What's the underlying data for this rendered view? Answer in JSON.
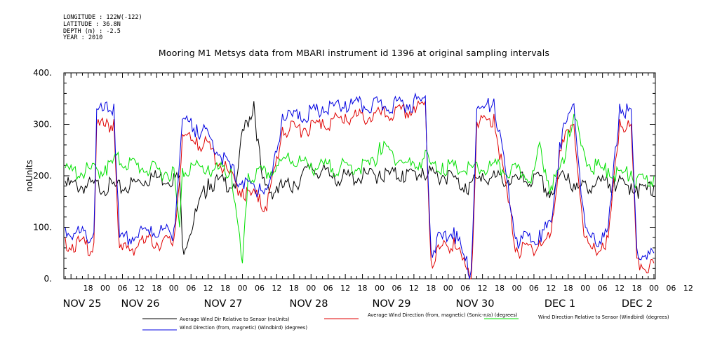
{
  "header": {
    "meta_lines": [
      "LONGITUDE : 122W(-122)",
      "LATITUDE : 36.8N",
      "DEPTH (m) : -2.5",
      "YEAR : 2010"
    ]
  },
  "chart_data": {
    "type": "line",
    "title": "Mooring M1 Metsys data from MBARI instrument id 1396 at original sampling intervals",
    "ylabel": "noUnits",
    "xlabel": "",
    "ylim": [
      0,
      400
    ],
    "yticks": [
      0,
      100,
      200,
      300,
      400
    ],
    "hour_labels": [
      "18",
      "00",
      "06",
      "12",
      "18",
      "00",
      "06",
      "12",
      "18",
      "00",
      "06",
      "12",
      "18",
      "00",
      "06",
      "12",
      "18",
      "00",
      "06",
      "12",
      "18",
      "00",
      "06",
      "12",
      "18",
      "00",
      "06",
      "12",
      "18",
      "00",
      "06",
      "12",
      "18",
      "00",
      "06",
      "12"
    ],
    "day_labels": [
      "NOV 25",
      "NOV 26",
      "NOV 27",
      "NOV 28",
      "NOV 29",
      "NOV 30",
      "DEC  1",
      "DEC  2"
    ],
    "x_hour_range": [
      -14.5,
      192.5
    ],
    "grid": false,
    "legend_position": "bottom",
    "series": [
      {
        "name": "Average Wind Dir Relative to Sensor (noUnits)",
        "color": "#000000",
        "x": [
          -14,
          3,
          4,
          16,
          24,
          26,
          27,
          36,
          46,
          48,
          52,
          55,
          57,
          60,
          61,
          66,
          72,
          80,
          84,
          96,
          100,
          104,
          108,
          111,
          114,
          116,
          120,
          126,
          132,
          144,
          152,
          156,
          160,
          162,
          164,
          166,
          168,
          178,
          184,
          186,
          192
        ],
        "values": [
          190,
          188,
          182,
          205,
          205,
          200,
          65,
          195,
          195,
          290,
          345,
          195,
          180,
          180,
          185,
          190,
          225,
          205,
          205,
          210,
          210,
          210,
          210,
          215,
          210,
          210,
          210,
          185,
          205,
          200,
          200,
          170,
          210,
          205,
          185,
          180,
          190,
          195,
          185,
          180,
          182
        ]
      },
      {
        "name": "Average Wind Direction (from, magnetic) (Sonic-n/a) (degrees)",
        "color": "#e00000",
        "x": [
          -14,
          -4,
          -3,
          3,
          5,
          12,
          16,
          24,
          27,
          28,
          32,
          36,
          48,
          54,
          56,
          58,
          62,
          68,
          76,
          84,
          96,
          108,
          112,
          114,
          116,
          122,
          128,
          130,
          136,
          144,
          152,
          156,
          159,
          160,
          162,
          164,
          168,
          170,
          174,
          176,
          180,
          184,
          186,
          192
        ],
        "values": [
          80,
          70,
          300,
          310,
          60,
          75,
          82,
          78,
          280,
          280,
          275,
          265,
          175,
          165,
          140,
          185,
          295,
          300,
          310,
          320,
          325,
          335,
          345,
          35,
          60,
          80,
          0,
          305,
          320,
          60,
          75,
          90,
          250,
          270,
          290,
          300,
          80,
          60,
          70,
          80,
          310,
          300,
          40,
          30
        ]
      },
      {
        "name": "Wind Direction Relative to Sensor (Windbird) (degrees)",
        "color": "#00e000",
        "x": [
          -14,
          0,
          4,
          16,
          24,
          26,
          27,
          30,
          36,
          44,
          48,
          50,
          56,
          60,
          64,
          72,
          84,
          94,
          96,
          108,
          112,
          114,
          118,
          128,
          136,
          144,
          150,
          152,
          156,
          160,
          162,
          164,
          168,
          176,
          184,
          186,
          192
        ],
        "values": [
          215,
          220,
          240,
          220,
          215,
          100,
          215,
          225,
          220,
          218,
          30,
          205,
          215,
          220,
          245,
          225,
          225,
          230,
          265,
          225,
          250,
          222,
          225,
          220,
          225,
          215,
          210,
          265,
          180,
          235,
          290,
          320,
          235,
          215,
          210,
          195,
          200
        ]
      },
      {
        "name": "Wind Direction (from, magnetic) (Windbird) (degrees)",
        "color": "#0000e0",
        "x": [
          -14,
          -4,
          -3,
          3,
          5,
          12,
          16,
          24,
          27,
          28,
          32,
          36,
          48,
          54,
          56,
          58,
          62,
          68,
          76,
          84,
          96,
          108,
          112,
          114,
          116,
          122,
          128,
          130,
          136,
          144,
          152,
          156,
          159,
          160,
          162,
          164,
          168,
          170,
          174,
          176,
          180,
          184,
          186,
          192
        ],
        "values": [
          100,
          90,
          330,
          340,
          80,
          95,
          102,
          98,
          310,
          310,
          300,
          285,
          190,
          185,
          175,
          200,
          320,
          325,
          335,
          345,
          345,
          350,
          355,
          55,
          80,
          100,
          15,
          330,
          350,
          80,
          95,
          110,
          265,
          290,
          320,
          340,
          100,
          80,
          90,
          100,
          340,
          330,
          60,
          50
        ]
      }
    ]
  }
}
